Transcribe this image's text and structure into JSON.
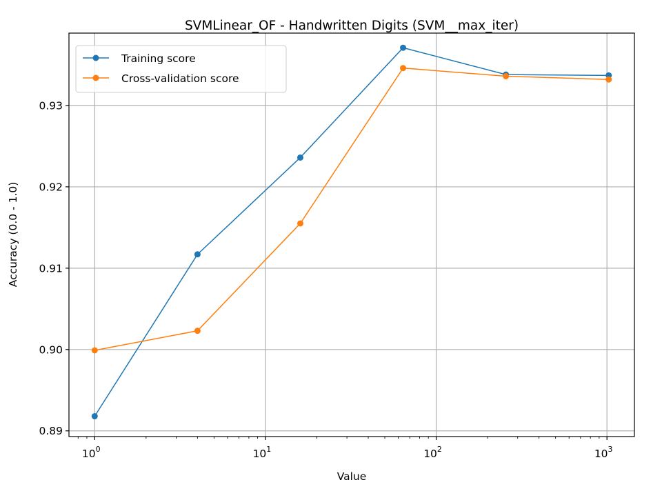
{
  "chart_data": {
    "type": "line",
    "title": "SVMLinear_OF - Handwritten Digits (SVM__max_iter)",
    "xlabel": "Value",
    "ylabel": "Accuracy (0.0 - 1.0)",
    "xscale": "log",
    "x": [
      1,
      4,
      16,
      64,
      256,
      1024
    ],
    "xlim": [
      0.707,
      1448
    ],
    "ylim": [
      0.8893,
      0.9389
    ],
    "x_ticks": [
      {
        "value": 1,
        "base": "10",
        "exp": "0"
      },
      {
        "value": 10,
        "base": "10",
        "exp": "1"
      },
      {
        "value": 100,
        "base": "10",
        "exp": "2"
      },
      {
        "value": 1000,
        "base": "10",
        "exp": "3"
      }
    ],
    "y_ticks": [
      {
        "value": 0.89,
        "label": "0.89"
      },
      {
        "value": 0.9,
        "label": "0.90"
      },
      {
        "value": 0.91,
        "label": "0.91"
      },
      {
        "value": 0.92,
        "label": "0.92"
      },
      {
        "value": 0.93,
        "label": "0.93"
      }
    ],
    "grid": true,
    "legend_position": "top-left",
    "series": [
      {
        "name": "Training score",
        "color": "#1f77b4",
        "values": [
          0.8918,
          0.9117,
          0.9236,
          0.9371,
          0.9338,
          0.9337
        ]
      },
      {
        "name": "Cross-validation score",
        "color": "#ff7f0e",
        "values": [
          0.8999,
          0.9023,
          0.9155,
          0.9346,
          0.9336,
          0.9332
        ]
      }
    ]
  }
}
